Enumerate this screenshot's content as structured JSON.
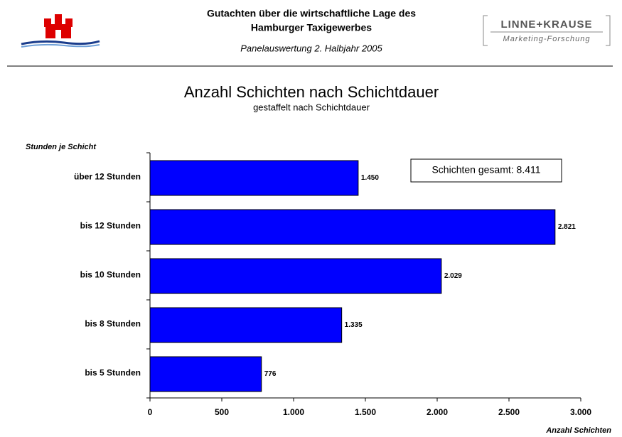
{
  "header": {
    "title_line1": "Gutachten  über die wirtschaftliche Lage des",
    "title_line2": "Hamburger Taxigewerbes",
    "subtitle": "Panelauswertung 2. Halbjahr 2005",
    "logo_name": "LINNE+KRAUSE",
    "logo_tagline": "Marketing-Forschung"
  },
  "chart_data": {
    "type": "hbar",
    "title": "Anzahl Schichten nach Schichtdauer",
    "subtitle": "gestaffelt nach Schichtdauer",
    "y_label": "Stunden je Schicht",
    "x_label": "Anzahl Schichten",
    "annotation": "Schichten gesamt: 8.411",
    "categories": [
      "über 12  Stunden",
      "bis 12 Stunden",
      "bis 10 Stunden",
      "bis 8  Stunden",
      "bis 5 Stunden"
    ],
    "values": [
      1450,
      2821,
      2029,
      1335,
      776
    ],
    "value_labels": [
      "1.450",
      "2.821",
      "2.029",
      "1.335",
      "776"
    ],
    "color": "#0000ff",
    "xlim": [
      0,
      3000
    ],
    "xticks": [
      0,
      500,
      {
        "value": 1000,
        "label": "1.000"
      },
      {
        "value": 1500,
        "label": "1.500"
      },
      {
        "value": 2000,
        "label": "2.000"
      },
      {
        "value": 2500,
        "label": "2.500"
      },
      {
        "value": 3000,
        "label": "3.000"
      }
    ]
  }
}
